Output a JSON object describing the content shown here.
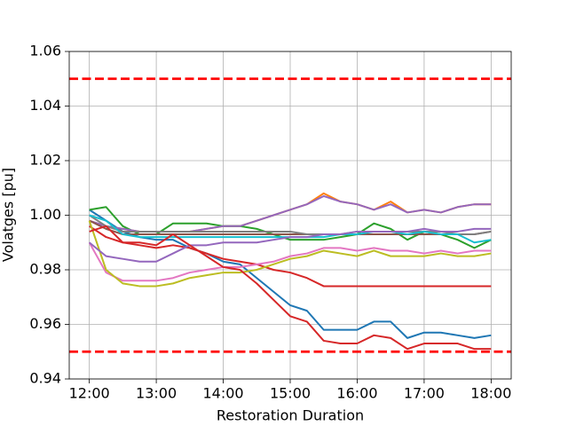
{
  "chart_data": {
    "type": "line",
    "xlabel": "Restoration Duration",
    "ylabel": "Volatges [pu]",
    "x": [
      12,
      12.25,
      12.5,
      12.75,
      13,
      13.25,
      13.5,
      13.75,
      14,
      14.25,
      14.5,
      14.75,
      15,
      15.25,
      15.5,
      15.75,
      16,
      16.25,
      16.5,
      16.75,
      17,
      17.25,
      17.5,
      17.75,
      18
    ],
    "xlim": [
      11.7,
      18.3
    ],
    "xticks": [
      {
        "value": 12,
        "label": "12:00"
      },
      {
        "value": 13,
        "label": "13:00"
      },
      {
        "value": 14,
        "label": "14:00"
      },
      {
        "value": 15,
        "label": "15:00"
      },
      {
        "value": 16,
        "label": "16:00"
      },
      {
        "value": 17,
        "label": "17:00"
      },
      {
        "value": 18,
        "label": "18:00"
      }
    ],
    "ylim": [
      0.94,
      1.06
    ],
    "yticks": [
      0.94,
      0.96,
      0.98,
      {
        "value": 1.0,
        "label": "1.00"
      },
      1.02,
      1.04,
      1.06
    ],
    "grid": true,
    "hlines": [
      1.05,
      0.95
    ],
    "hline_color": "#ff0000",
    "series": [
      {
        "color": "#1f77b4",
        "values": [
          1.002,
          0.998,
          0.994,
          0.992,
          0.991,
          0.991,
          0.988,
          0.986,
          0.983,
          0.982,
          0.977,
          0.972,
          0.967,
          0.965,
          0.958,
          0.958,
          0.958,
          0.961,
          0.961,
          0.955,
          0.957,
          0.957,
          0.956,
          0.955,
          0.956
        ]
      },
      {
        "color": "#ff7f0e",
        "values": [
          0.998,
          0.996,
          0.995,
          0.994,
          0.994,
          0.994,
          0.994,
          0.995,
          0.996,
          0.996,
          0.998,
          1.0,
          1.002,
          1.004,
          1.008,
          1.005,
          1.004,
          1.002,
          1.005,
          1.001,
          1.002,
          1.001,
          1.003,
          1.004,
          1.004
        ]
      },
      {
        "color": "#2ca02c",
        "values": [
          1.002,
          1.003,
          0.996,
          0.993,
          0.993,
          0.997,
          0.997,
          0.997,
          0.996,
          0.996,
          0.995,
          0.993,
          0.991,
          0.991,
          0.991,
          0.992,
          0.993,
          0.997,
          0.995,
          0.991,
          0.994,
          0.993,
          0.991,
          0.988,
          0.991
        ]
      },
      {
        "color": "#d62728",
        "values": [
          0.996,
          0.992,
          0.99,
          0.989,
          0.988,
          0.989,
          0.988,
          0.986,
          0.984,
          0.983,
          0.982,
          0.98,
          0.979,
          0.977,
          0.974,
          0.974,
          0.974,
          0.974,
          0.974,
          0.974,
          0.974,
          0.974,
          0.974,
          0.974,
          0.974
        ]
      },
      {
        "color": "#9467bd",
        "values": [
          0.998,
          0.996,
          0.995,
          0.994,
          0.994,
          0.994,
          0.994,
          0.995,
          0.996,
          0.996,
          0.998,
          1.0,
          1.002,
          1.004,
          1.007,
          1.005,
          1.004,
          1.002,
          1.004,
          1.001,
          1.002,
          1.001,
          1.003,
          1.004,
          1.004
        ]
      },
      {
        "color": "#8c564b",
        "values": [
          0.998,
          0.995,
          0.993,
          0.993,
          0.993,
          0.993,
          0.993,
          0.993,
          0.993,
          0.993,
          0.993,
          0.993,
          0.993,
          0.993,
          0.993,
          0.993,
          0.993,
          0.993,
          0.993,
          0.993,
          0.993,
          0.993,
          0.993,
          0.993,
          0.994
        ]
      },
      {
        "color": "#e377c2",
        "values": [
          0.99,
          0.979,
          0.976,
          0.976,
          0.976,
          0.977,
          0.979,
          0.98,
          0.981,
          0.981,
          0.982,
          0.983,
          0.985,
          0.986,
          0.988,
          0.988,
          0.987,
          0.988,
          0.987,
          0.987,
          0.986,
          0.987,
          0.986,
          0.987,
          0.987
        ]
      },
      {
        "color": "#7f7f7f",
        "values": [
          1.0,
          0.996,
          0.994,
          0.994,
          0.994,
          0.994,
          0.994,
          0.994,
          0.994,
          0.994,
          0.994,
          0.994,
          0.994,
          0.993,
          0.993,
          0.993,
          0.994,
          0.994,
          0.994,
          0.994,
          0.994,
          0.994,
          0.993,
          0.993,
          0.994
        ]
      },
      {
        "color": "#bcbd22",
        "values": [
          0.998,
          0.98,
          0.975,
          0.974,
          0.974,
          0.975,
          0.977,
          0.978,
          0.979,
          0.979,
          0.98,
          0.982,
          0.984,
          0.985,
          0.987,
          0.986,
          0.985,
          0.987,
          0.985,
          0.985,
          0.985,
          0.986,
          0.985,
          0.985,
          0.986
        ]
      },
      {
        "color": "#17becf",
        "values": [
          1.0,
          0.998,
          0.993,
          0.992,
          0.992,
          0.992,
          0.992,
          0.992,
          0.992,
          0.992,
          0.992,
          0.992,
          0.992,
          0.992,
          0.992,
          0.993,
          0.993,
          0.994,
          0.994,
          0.993,
          0.994,
          0.993,
          0.993,
          0.99,
          0.991
        ]
      },
      {
        "color": "#9467bd",
        "values": [
          0.99,
          0.985,
          0.984,
          0.983,
          0.983,
          0.986,
          0.989,
          0.989,
          0.99,
          0.99,
          0.99,
          0.991,
          0.992,
          0.992,
          0.993,
          0.993,
          0.994,
          0.994,
          0.994,
          0.994,
          0.995,
          0.994,
          0.994,
          0.995,
          0.995
        ]
      },
      {
        "color": "#d62728",
        "values": [
          0.994,
          0.996,
          0.99,
          0.99,
          0.989,
          0.993,
          0.989,
          0.985,
          0.981,
          0.98,
          0.975,
          0.969,
          0.963,
          0.961,
          0.954,
          0.953,
          0.953,
          0.956,
          0.955,
          0.951,
          0.953,
          0.953,
          0.953,
          0.951,
          0.951
        ]
      }
    ]
  }
}
